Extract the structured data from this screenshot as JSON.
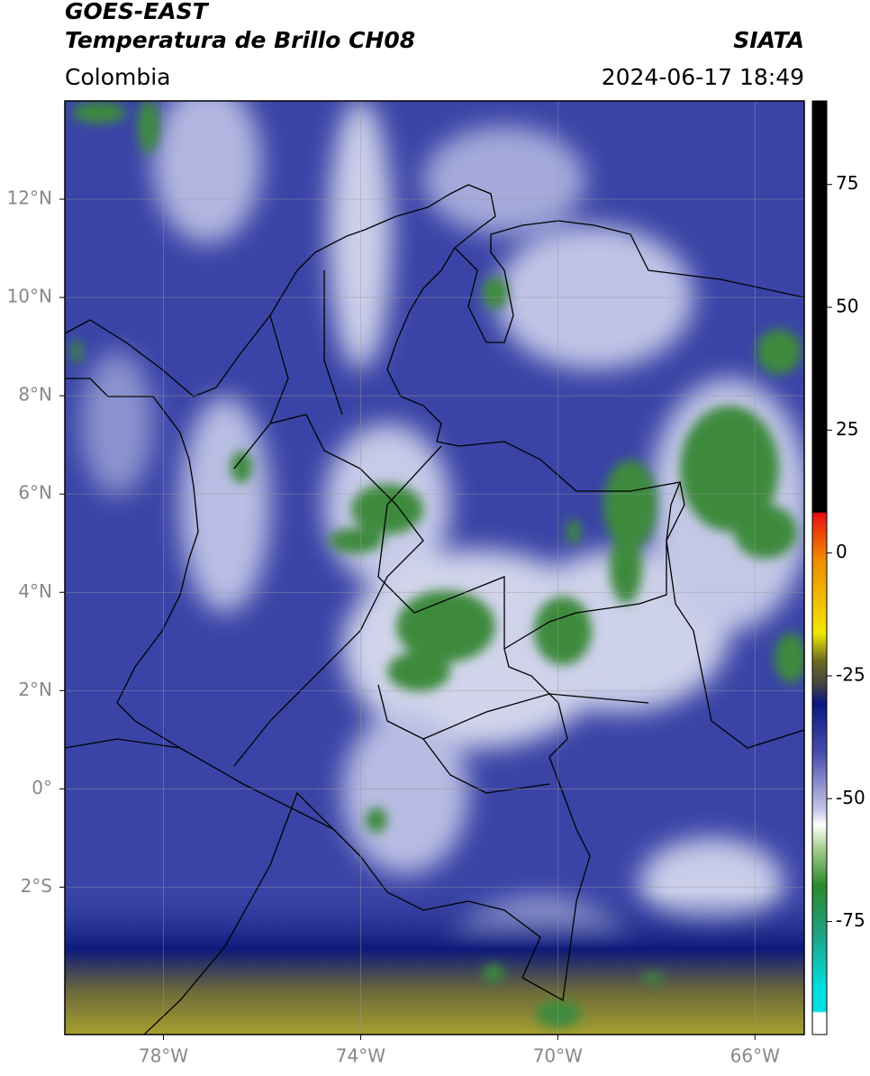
{
  "header": {
    "source": "GOES-EAST",
    "title": "Temperatura de Brillo CH08",
    "agency": "SIATA",
    "region": "Colombia",
    "datetime": "2024-06-17 18:49"
  },
  "map": {
    "xlim": [
      -80,
      -65
    ],
    "ylim": [
      -5,
      14
    ],
    "xticks": [
      {
        "value": -78,
        "label": "78°W"
      },
      {
        "value": -74,
        "label": "74°W"
      },
      {
        "value": -70,
        "label": "70°W"
      },
      {
        "value": -66,
        "label": "66°W"
      }
    ],
    "yticks": [
      {
        "value": -2,
        "label": "2°S"
      },
      {
        "value": 0,
        "label": "0°"
      },
      {
        "value": 2,
        "label": "2°N"
      },
      {
        "value": 4,
        "label": "4°N"
      },
      {
        "value": 6,
        "label": "6°N"
      },
      {
        "value": 8,
        "label": "8°N"
      },
      {
        "value": 10,
        "label": "10°N"
      },
      {
        "value": 12,
        "label": "12°N"
      }
    ],
    "grid": true
  },
  "colorbar": {
    "lim": [
      -98,
      92
    ],
    "ticks": [
      75,
      50,
      25,
      0,
      -25,
      -50,
      -75
    ]
  }
}
